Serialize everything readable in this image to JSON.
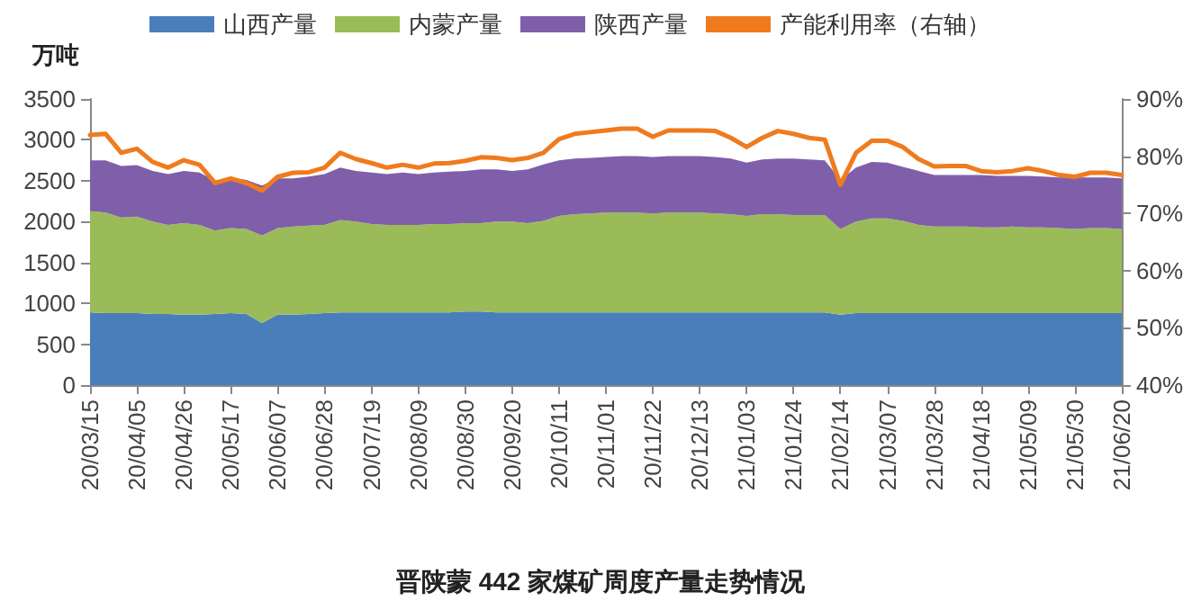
{
  "chart_data": {
    "type": "area",
    "title": "晋陕蒙 442 家煤矿周度产量走势情况",
    "ylabel": "万吨",
    "categories": [
      "20/03/15",
      null,
      null,
      "20/04/05",
      null,
      null,
      "20/04/26",
      null,
      null,
      "20/05/17",
      null,
      null,
      "20/06/07",
      null,
      null,
      "20/06/28",
      null,
      null,
      "20/07/19",
      null,
      null,
      "20/08/09",
      null,
      null,
      "20/08/30",
      null,
      null,
      "20/09/20",
      null,
      null,
      "20/10/11",
      null,
      null,
      "20/11/01",
      null,
      null,
      "20/11/22",
      null,
      null,
      "20/12/13",
      null,
      null,
      "21/01/03",
      null,
      null,
      "21/01/24",
      null,
      null,
      "21/02/14",
      null,
      null,
      "21/03/07",
      null,
      null,
      "21/03/28",
      null,
      null,
      "21/04/18",
      null,
      null,
      "21/05/09",
      null,
      null,
      "21/05/30",
      null,
      null,
      "21/06/20"
    ],
    "stacked": true,
    "series": [
      {
        "name": "山西产量",
        "color": "#4a7ebb",
        "values": [
          890,
          880,
          880,
          880,
          870,
          870,
          860,
          860,
          870,
          880,
          870,
          760,
          860,
          860,
          870,
          880,
          890,
          890,
          890,
          890,
          890,
          890,
          890,
          890,
          900,
          900,
          890,
          890,
          890,
          890,
          890,
          890,
          890,
          890,
          890,
          890,
          890,
          890,
          890,
          890,
          890,
          890,
          890,
          890,
          890,
          890,
          890,
          890,
          860,
          880,
          880,
          880,
          880,
          880,
          880,
          880,
          880,
          880,
          880,
          880,
          880,
          880,
          880,
          880,
          880,
          880,
          880
        ]
      },
      {
        "name": "内蒙产量",
        "color": "#9bbb59",
        "values": [
          1240,
          1230,
          1170,
          1180,
          1130,
          1090,
          1120,
          1100,
          1020,
          1040,
          1040,
          1070,
          1060,
          1080,
          1080,
          1080,
          1130,
          1110,
          1080,
          1070,
          1070,
          1070,
          1080,
          1080,
          1080,
          1080,
          1110,
          1110,
          1090,
          1120,
          1180,
          1200,
          1210,
          1220,
          1220,
          1220,
          1210,
          1220,
          1220,
          1220,
          1210,
          1200,
          1180,
          1200,
          1200,
          1190,
          1190,
          1190,
          1050,
          1120,
          1160,
          1160,
          1130,
          1080,
          1060,
          1060,
          1060,
          1050,
          1050,
          1060,
          1050,
          1050,
          1040,
          1030,
          1040,
          1040,
          1030
        ]
      },
      {
        "name": "陕西产量",
        "color": "#7f5fa9",
        "values": [
          620,
          640,
          630,
          630,
          620,
          620,
          640,
          640,
          610,
          620,
          600,
          610,
          610,
          590,
          600,
          620,
          640,
          620,
          630,
          620,
          640,
          620,
          630,
          640,
          640,
          660,
          640,
          620,
          660,
          690,
          680,
          680,
          680,
          680,
          690,
          690,
          690,
          690,
          690,
          690,
          690,
          680,
          650,
          670,
          680,
          690,
          680,
          670,
          600,
          660,
          690,
          680,
          660,
          660,
          630,
          630,
          630,
          640,
          630,
          620,
          630,
          620,
          620,
          630,
          620,
          620,
          620
        ]
      },
      {
        "name": "产能利用率（右轴）",
        "type": "line",
        "axis": "y2",
        "color": "#f07b1e",
        "values": [
          83.7,
          83.9,
          80.6,
          81.3,
          79.0,
          78.0,
          79.3,
          78.5,
          75.3,
          76.1,
          75.3,
          74.0,
          76.4,
          77.1,
          77.2,
          78.0,
          80.6,
          79.5,
          78.8,
          78.0,
          78.5,
          78.0,
          78.7,
          78.8,
          79.2,
          79.8,
          79.7,
          79.3,
          79.7,
          80.6,
          83.0,
          83.9,
          84.2,
          84.5,
          84.8,
          84.8,
          83.4,
          84.5,
          84.5,
          84.5,
          84.4,
          83.2,
          81.6,
          83.2,
          84.4,
          83.9,
          83.2,
          82.9,
          75.0,
          80.6,
          82.7,
          82.7,
          81.6,
          79.5,
          78.2,
          78.3,
          78.3,
          77.4,
          77.2,
          77.4,
          77.9,
          77.4,
          76.7,
          76.4,
          77.1,
          77.1,
          76.7
        ]
      }
    ],
    "ylim": [
      0,
      3500
    ],
    "yticks": [
      0,
      500,
      1000,
      1500,
      2000,
      2500,
      3000,
      3500
    ],
    "y2lim": [
      40,
      90
    ],
    "y2ticks": [
      {
        "value": 40,
        "label": "40%"
      },
      {
        "value": 50,
        "label": "50%"
      },
      {
        "value": 60,
        "label": "60%"
      },
      {
        "value": 70,
        "label": "70%"
      },
      {
        "value": 80,
        "label": "80%"
      },
      {
        "value": 90,
        "label": "90%"
      }
    ],
    "legend": "top",
    "grid": false
  }
}
